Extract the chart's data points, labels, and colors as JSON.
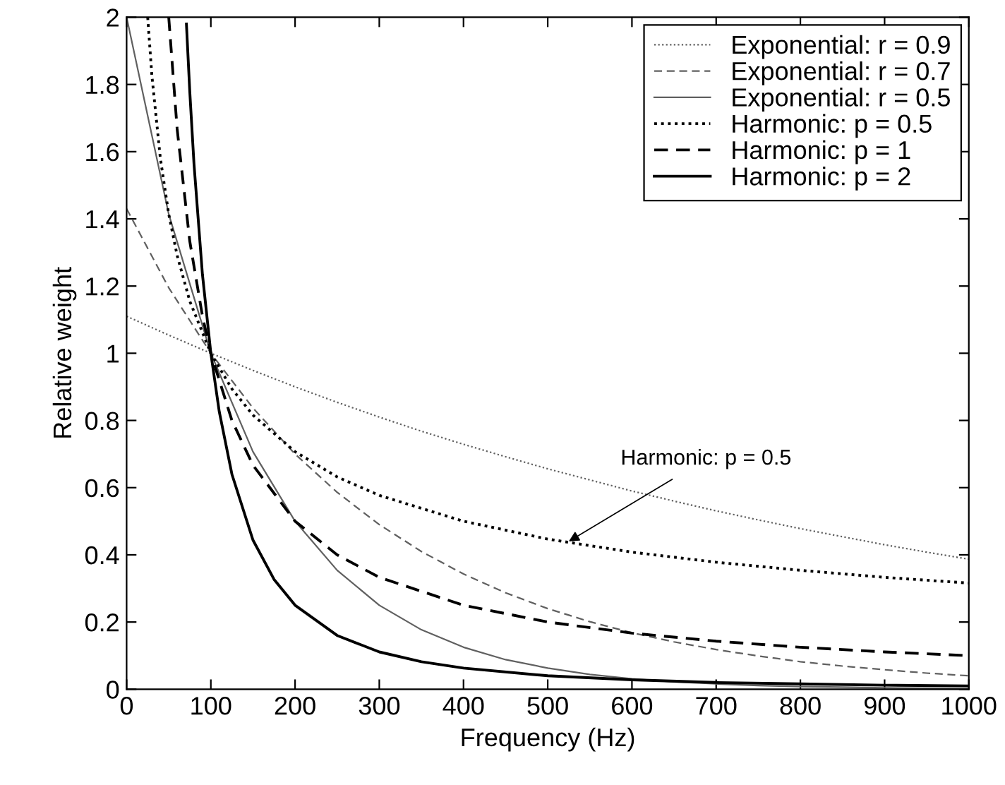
{
  "chart_data": {
    "type": "line",
    "xlabel": "Frequency (Hz)",
    "ylabel": "Relative weight",
    "xlim": [
      0,
      1000
    ],
    "ylim": [
      0,
      2
    ],
    "xticks": [
      0,
      100,
      200,
      300,
      400,
      500,
      600,
      700,
      800,
      900,
      1000
    ],
    "yticks": [
      0,
      0.2,
      0.4,
      0.6,
      0.8,
      1,
      1.2,
      1.4,
      1.6,
      1.8,
      2
    ],
    "grid": false,
    "legend": "top right",
    "marker": "none",
    "annotations": [
      {
        "text": "Harmonic: p = 0.5",
        "x": 525,
        "y": 0.44
      }
    ],
    "series": [
      {
        "name": "Exponential: r = 0.9",
        "color": "#606060",
        "line_style": "dotted",
        "x": [
          0,
          50,
          100,
          150,
          200,
          250,
          300,
          350,
          400,
          450,
          500,
          550,
          600,
          650,
          700,
          750,
          800,
          850,
          900,
          950,
          1000
        ],
        "values": [
          1.11,
          1.054,
          1,
          0.949,
          0.9,
          0.854,
          0.81,
          0.768,
          0.729,
          0.692,
          0.656,
          0.623,
          0.59,
          0.56,
          0.531,
          0.504,
          0.478,
          0.454,
          0.43,
          0.408,
          0.387
        ]
      },
      {
        "name": "Exponential: r = 0.7",
        "color": "#606060",
        "line_style": "dashed",
        "x": [
          0,
          50,
          100,
          150,
          200,
          250,
          300,
          350,
          400,
          450,
          500,
          550,
          600,
          650,
          700,
          750,
          800,
          850,
          900,
          950,
          1000
        ],
        "values": [
          1.43,
          1.195,
          1,
          0.837,
          0.7,
          0.586,
          0.49,
          0.41,
          0.343,
          0.287,
          0.24,
          0.201,
          0.168,
          0.141,
          0.118,
          0.099,
          0.082,
          0.069,
          0.058,
          0.048,
          0.04
        ]
      },
      {
        "name": "Exponential: r = 0.5",
        "color": "#606060",
        "line_style": "solid",
        "x": [
          0,
          50,
          100,
          150,
          200,
          250,
          300,
          350,
          400,
          450,
          500,
          550,
          600,
          650,
          700,
          750,
          800,
          850,
          900,
          950,
          1000
        ],
        "values": [
          2,
          1.414,
          1,
          0.707,
          0.5,
          0.354,
          0.25,
          0.177,
          0.125,
          0.088,
          0.063,
          0.044,
          0.031,
          0.022,
          0.016,
          0.011,
          0.008,
          0.006,
          0.004,
          0.003,
          0.002
        ]
      },
      {
        "name": "Harmonic: p = 0.5",
        "color": "#000000",
        "line_style": "dotted",
        "x": [
          25,
          30,
          40,
          50,
          60,
          75,
          100,
          125,
          150,
          200,
          250,
          300,
          400,
          500,
          600,
          700,
          800,
          900,
          1000
        ],
        "values": [
          2,
          1.826,
          1.581,
          1.414,
          1.291,
          1.155,
          1,
          0.894,
          0.816,
          0.707,
          0.632,
          0.577,
          0.5,
          0.447,
          0.408,
          0.378,
          0.354,
          0.333,
          0.316
        ]
      },
      {
        "name": "Harmonic: p = 1",
        "color": "#000000",
        "line_style": "dashed",
        "x": [
          50,
          60,
          75,
          90,
          100,
          125,
          150,
          200,
          250,
          300,
          400,
          500,
          600,
          700,
          800,
          900,
          1000
        ],
        "values": [
          2,
          1.667,
          1.333,
          1.111,
          1,
          0.8,
          0.667,
          0.5,
          0.4,
          0.333,
          0.25,
          0.2,
          0.167,
          0.143,
          0.125,
          0.111,
          0.1
        ]
      },
      {
        "name": "Harmonic: p = 2",
        "color": "#000000",
        "line_style": "solid",
        "x": [
          71,
          75,
          80,
          90,
          100,
          110,
          125,
          150,
          175,
          200,
          250,
          300,
          350,
          400,
          500,
          600,
          700,
          800,
          900,
          1000
        ],
        "values": [
          1.98,
          1.778,
          1.563,
          1.235,
          1,
          0.826,
          0.64,
          0.444,
          0.327,
          0.25,
          0.16,
          0.111,
          0.082,
          0.063,
          0.04,
          0.028,
          0.02,
          0.016,
          0.012,
          0.01
        ]
      }
    ]
  }
}
